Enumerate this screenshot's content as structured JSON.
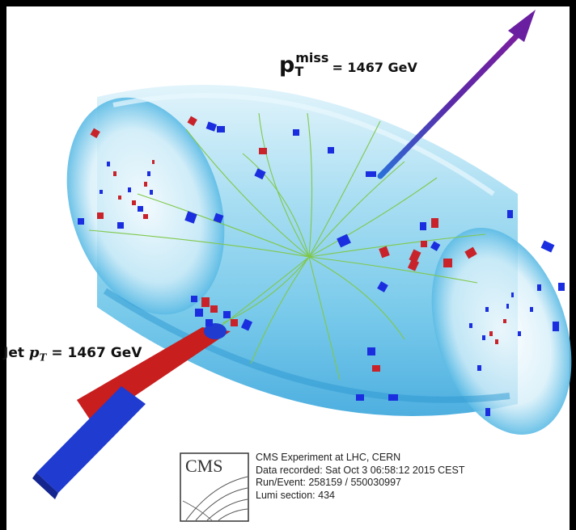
{
  "met_label": {
    "prefix": "p",
    "sub": "T",
    "sup": "miss",
    "value": "= 1467 GeV"
  },
  "jet_label": {
    "text": "Jet",
    "var": "p",
    "sub": "T",
    "value": "= 1467 GeV"
  },
  "logo": {
    "text": "CMS"
  },
  "info_lines": [
    "CMS Experiment at LHC, CERN",
    "Data recorded: Sat Oct  3 06:58:12 2015 CEST",
    "Run/Event: 258159 / 550030997",
    "Lumi section: 434"
  ],
  "colors": {
    "frame": "#000000",
    "detector_blue": "#8fd3ec",
    "hcal_red": "#c8232a",
    "ecal_blue": "#1a2ee0",
    "track_green": "#7fc84a",
    "met_arrow": "#6a1fa0",
    "jet_red": "#c81e1e",
    "jet_blue": "#1f3bd0"
  }
}
